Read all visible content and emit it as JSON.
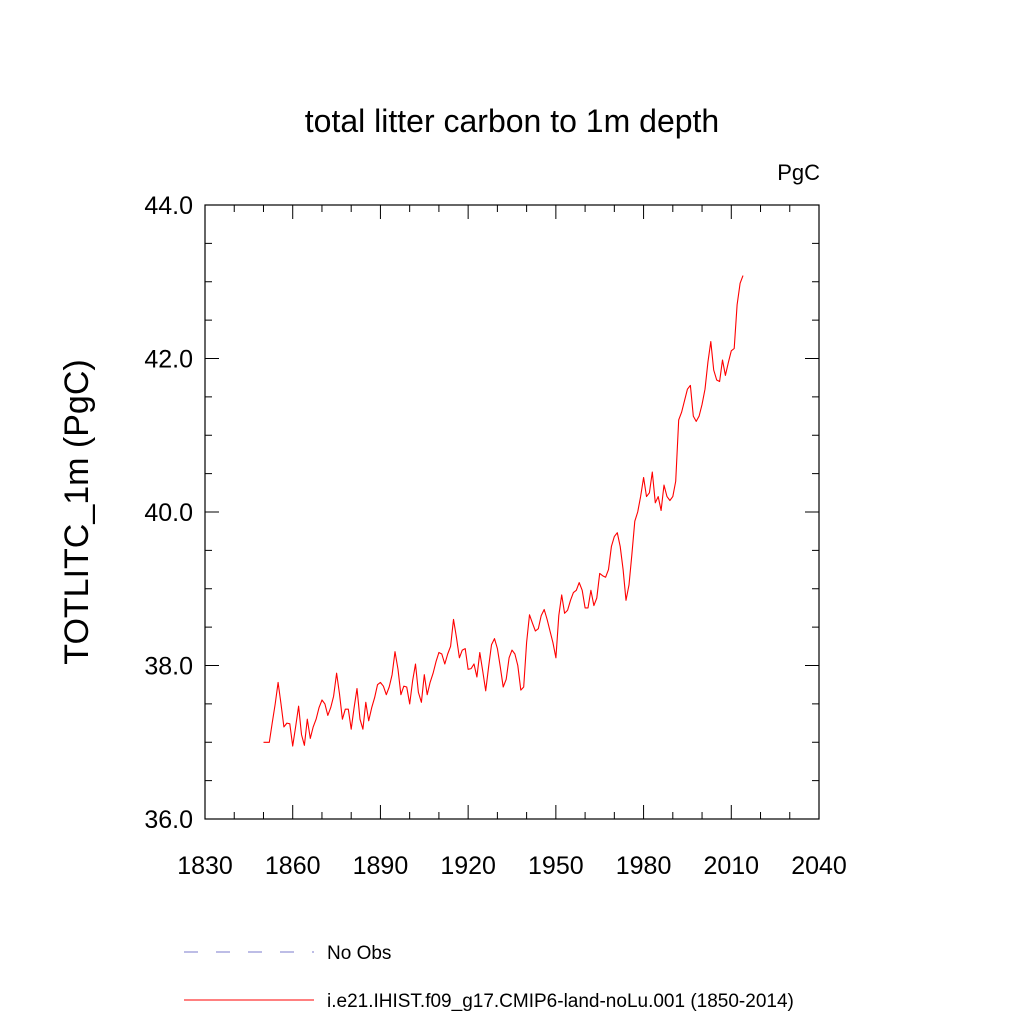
{
  "chart_data": {
    "type": "line",
    "title": "total litter carbon to 1m depth",
    "units": "PgC",
    "ylabel": "TOTLITC_1m  (PgC)",
    "xlabel": "",
    "xlim": [
      1830,
      2040
    ],
    "ylim": [
      36.0,
      44.0
    ],
    "x_ticks": [
      1830,
      1860,
      1890,
      1920,
      1950,
      1980,
      2010,
      2040
    ],
    "x_tick_labels": [
      "1830",
      "1860",
      "1890",
      "1920",
      "1950",
      "1980",
      "2010",
      "2040"
    ],
    "y_ticks": [
      36.0,
      38.0,
      40.0,
      42.0,
      44.0
    ],
    "y_tick_labels": [
      "36.0",
      "38.0",
      "40.0",
      "42.0",
      "44.0"
    ],
    "grid": false,
    "legend_position": "bottom",
    "series": [
      {
        "name": "i.e21.IHIST.f09_g17.CMIP6-land-noLu.001 (1850-2014)",
        "color": "#ff0000",
        "style": "solid",
        "x": [
          1850,
          1851,
          1852,
          1853,
          1854,
          1855,
          1856,
          1857,
          1858,
          1859,
          1860,
          1861,
          1862,
          1863,
          1864,
          1865,
          1866,
          1867,
          1868,
          1869,
          1870,
          1871,
          1872,
          1873,
          1874,
          1875,
          1876,
          1877,
          1878,
          1879,
          1880,
          1881,
          1882,
          1883,
          1884,
          1885,
          1886,
          1887,
          1888,
          1889,
          1890,
          1891,
          1892,
          1893,
          1894,
          1895,
          1896,
          1897,
          1898,
          1899,
          1900,
          1901,
          1902,
          1903,
          1904,
          1905,
          1906,
          1907,
          1908,
          1909,
          1910,
          1911,
          1912,
          1913,
          1914,
          1915,
          1916,
          1917,
          1918,
          1919,
          1920,
          1921,
          1922,
          1923,
          1924,
          1925,
          1926,
          1927,
          1928,
          1929,
          1930,
          1931,
          1932,
          1933,
          1934,
          1935,
          1936,
          1937,
          1938,
          1939,
          1940,
          1941,
          1942,
          1943,
          1944,
          1945,
          1946,
          1947,
          1948,
          1949,
          1950,
          1951,
          1952,
          1953,
          1954,
          1955,
          1956,
          1957,
          1958,
          1959,
          1960,
          1961,
          1962,
          1963,
          1964,
          1965,
          1966,
          1967,
          1968,
          1969,
          1970,
          1971,
          1972,
          1973,
          1974,
          1975,
          1976,
          1977,
          1978,
          1979,
          1980,
          1981,
          1982,
          1983,
          1984,
          1985,
          1986,
          1987,
          1988,
          1989,
          1990,
          1991,
          1992,
          1993,
          1994,
          1995,
          1996,
          1997,
          1998,
          1999,
          2000,
          2001,
          2002,
          2003,
          2004,
          2005,
          2006,
          2007,
          2008,
          2009,
          2010,
          2011,
          2012,
          2013,
          2014
        ],
        "y": [
          37.0,
          37.0,
          37.0,
          37.25,
          37.5,
          37.78,
          37.5,
          37.2,
          37.25,
          37.24,
          36.95,
          37.2,
          37.47,
          37.1,
          36.96,
          37.3,
          37.05,
          37.2,
          37.3,
          37.45,
          37.55,
          37.5,
          37.35,
          37.45,
          37.6,
          37.9,
          37.63,
          37.3,
          37.43,
          37.43,
          37.17,
          37.45,
          37.7,
          37.3,
          37.17,
          37.52,
          37.28,
          37.45,
          37.58,
          37.75,
          37.78,
          37.73,
          37.62,
          37.72,
          37.88,
          38.18,
          37.95,
          37.62,
          37.73,
          37.72,
          37.5,
          37.8,
          38.02,
          37.65,
          37.52,
          37.88,
          37.62,
          37.78,
          37.9,
          38.05,
          38.17,
          38.15,
          38.02,
          38.15,
          38.25,
          38.6,
          38.37,
          38.1,
          38.2,
          38.22,
          37.95,
          37.96,
          38.02,
          37.85,
          38.17,
          37.92,
          37.67,
          37.98,
          38.27,
          38.35,
          38.22,
          37.98,
          37.72,
          37.82,
          38.1,
          38.2,
          38.15,
          38.0,
          37.68,
          37.72,
          38.3,
          38.66,
          38.55,
          38.45,
          38.48,
          38.65,
          38.73,
          38.6,
          38.45,
          38.3,
          38.1,
          38.65,
          38.92,
          38.68,
          38.72,
          38.85,
          38.95,
          38.98,
          39.08,
          38.98,
          38.75,
          38.75,
          38.98,
          38.78,
          38.88,
          39.2,
          39.17,
          39.15,
          39.25,
          39.55,
          39.68,
          39.73,
          39.55,
          39.25,
          38.85,
          39.05,
          39.45,
          39.88,
          40.0,
          40.2,
          40.45,
          40.2,
          40.25,
          40.52,
          40.12,
          40.2,
          40.02,
          40.35,
          40.2,
          40.15,
          40.2,
          40.4,
          41.2,
          41.3,
          41.45,
          41.6,
          41.65,
          41.25,
          41.18,
          41.25,
          41.4,
          41.6,
          41.95,
          42.22,
          41.85,
          41.72,
          41.7,
          41.98,
          41.78,
          41.95,
          42.1,
          42.13,
          42.7,
          42.98,
          43.08
        ]
      }
    ],
    "legend_entries": [
      {
        "label": "No Obs",
        "color": "#7b7bcc",
        "style": "dashed"
      },
      {
        "label": "i.e21.IHIST.f09_g17.CMIP6-land-noLu.001 (1850-2014)",
        "color": "#ff0000",
        "style": "solid"
      }
    ]
  }
}
